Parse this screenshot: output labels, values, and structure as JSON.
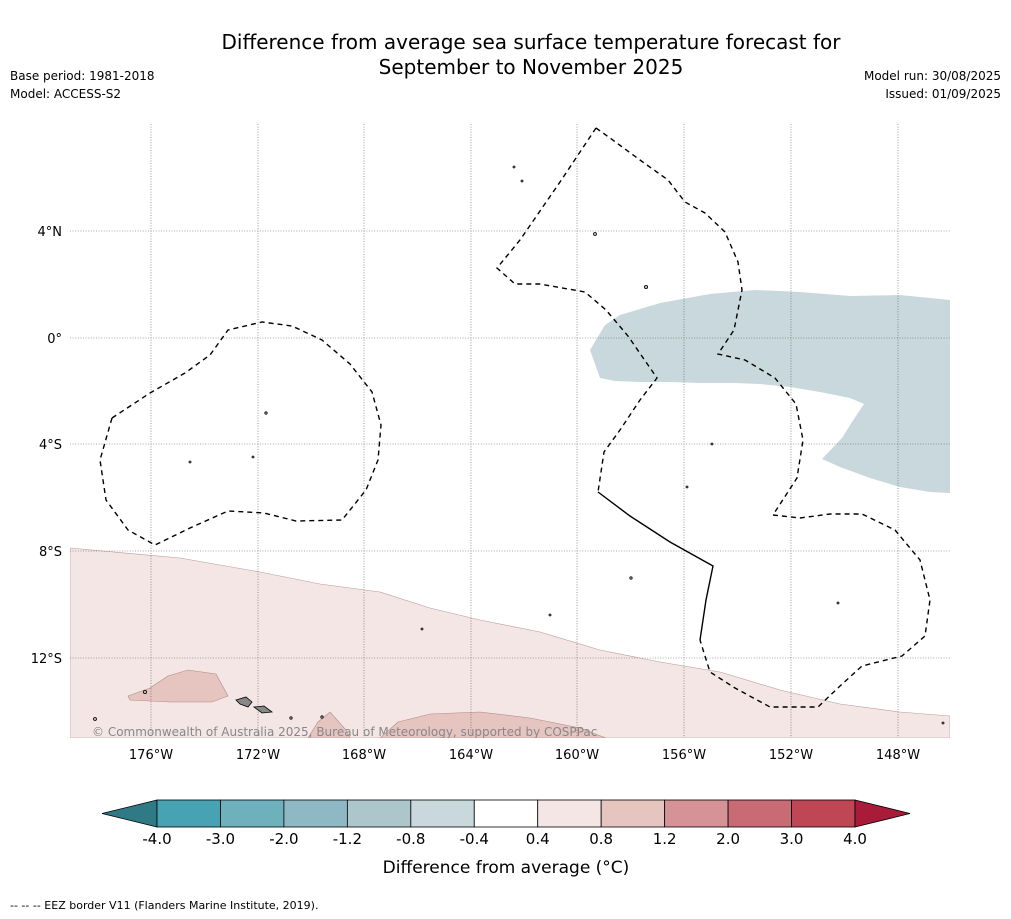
{
  "title": {
    "line1": "Difference from average sea surface temperature forecast for",
    "line2": "September to November 2025"
  },
  "meta": {
    "base_period": "Base period: 1981-2018",
    "model": "Model: ACCESS-S2",
    "model_run": "Model run: 30/08/2025",
    "issued": "Issued: 01/09/2025"
  },
  "map": {
    "lat_labels": [
      "4°N",
      "0°",
      "4°S",
      "8°S",
      "12°S"
    ],
    "lon_labels": [
      "176°W",
      "172°W",
      "168°W",
      "164°W",
      "160°W",
      "156°W",
      "152°W",
      "148°W"
    ],
    "copyright": "© Commonwealth of Australia 2025, Bureau of Meteorology, supported by COSPPac"
  },
  "colorbar": {
    "tick_labels": [
      "-4.0",
      "-3.0",
      "-2.0",
      "-1.2",
      "-0.8",
      "-0.4",
      "0.4",
      "0.8",
      "1.2",
      "2.0",
      "3.0",
      "4.0"
    ],
    "colors": [
      "#47a3b3",
      "#6fb0bd",
      "#8eb9c4",
      "#acc6cc",
      "#c8d8dc",
      "#ffffff",
      "#f3e6e5",
      "#e6c4c0",
      "#d59297",
      "#c96b74",
      "#bf4655"
    ],
    "under_color": "#2f7a84",
    "over_color": "#a81c3a",
    "label": "Difference from average (°C)"
  },
  "legend_note": "--  --  -- EEZ border V11 (Flanders Marine Institute, 2019)."
}
